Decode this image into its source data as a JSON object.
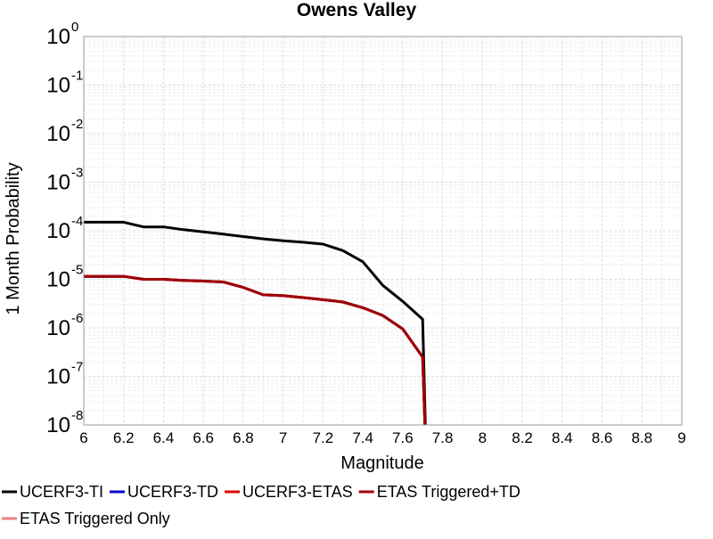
{
  "chart_data": {
    "type": "line",
    "title": "Owens Valley",
    "xlabel": "Magnitude",
    "ylabel": "1 Month Probability",
    "xlim": [
      6,
      9
    ],
    "ylim": [
      1e-08,
      1
    ],
    "y_scale": "log",
    "grid": true,
    "legend_position": "bottom",
    "x_ticks": [
      "6",
      "6.2",
      "6.4",
      "6.6",
      "6.8",
      "7",
      "7.2",
      "7.4",
      "7.6",
      "7.8",
      "8",
      "8.2",
      "8.4",
      "8.6",
      "8.8",
      "9"
    ],
    "y_ticks": [
      {
        "base": "10",
        "exp": "0"
      },
      {
        "base": "10",
        "exp": "-1"
      },
      {
        "base": "10",
        "exp": "-2"
      },
      {
        "base": "10",
        "exp": "-3"
      },
      {
        "base": "10",
        "exp": "-4"
      },
      {
        "base": "10",
        "exp": "-5"
      },
      {
        "base": "10",
        "exp": "-6"
      },
      {
        "base": "10",
        "exp": "-7"
      },
      {
        "base": "10",
        "exp": "-8"
      }
    ],
    "series": [
      {
        "name": "UCERF3-TI",
        "color": "#000000",
        "x": [
          6.0,
          6.1,
          6.2,
          6.3,
          6.4,
          6.5,
          6.6,
          6.7,
          6.8,
          6.9,
          7.0,
          7.1,
          7.2,
          7.3,
          7.4,
          7.5,
          7.6,
          7.7,
          7.72
        ],
        "y": [
          0.00015,
          0.00015,
          0.00015,
          0.00012,
          0.00012,
          0.000105,
          9.5e-05,
          8.5e-05,
          7.6e-05,
          6.8e-05,
          6.2e-05,
          5.8e-05,
          5.3e-05,
          3.9e-05,
          2.3e-05,
          7.5e-06,
          3.5e-06,
          1.5e-06,
          1e-09
        ]
      },
      {
        "name": "UCERF3-TD",
        "color": "#0000cc",
        "x": [
          6.0,
          6.1,
          6.2,
          6.3,
          6.4,
          6.5,
          6.6,
          6.7,
          6.8,
          6.9,
          7.0,
          7.1,
          7.2,
          7.3,
          7.4,
          7.5,
          7.6,
          7.7,
          7.72
        ],
        "y": [
          1.15e-05,
          1.15e-05,
          1.15e-05,
          1e-05,
          1e-05,
          9.5e-06,
          9.2e-06,
          8.8e-06,
          6.8e-06,
          4.8e-06,
          4.6e-06,
          4.2e-06,
          3.8e-06,
          3.4e-06,
          2.6e-06,
          1.8e-06,
          9.5e-07,
          2.5e-07,
          1e-09
        ]
      },
      {
        "name": "UCERF3-ETAS",
        "color": "#e00000",
        "x": [
          6.0,
          6.1,
          6.2,
          6.3,
          6.4,
          6.5,
          6.6,
          6.7,
          6.8,
          6.9,
          7.0,
          7.1,
          7.2,
          7.3,
          7.4,
          7.5,
          7.6,
          7.7,
          7.72
        ],
        "y": [
          1.15e-05,
          1.15e-05,
          1.15e-05,
          1e-05,
          1e-05,
          9.5e-06,
          9.2e-06,
          8.8e-06,
          6.8e-06,
          4.8e-06,
          4.6e-06,
          4.2e-06,
          3.8e-06,
          3.4e-06,
          2.6e-06,
          1.8e-06,
          9.5e-07,
          2.5e-07,
          1e-09
        ]
      },
      {
        "name": "ETAS Triggered+TD",
        "color": "#a00000",
        "x": [
          6.0,
          6.1,
          6.2,
          6.3,
          6.4,
          6.5,
          6.6,
          6.7,
          6.8,
          6.9,
          7.0,
          7.1,
          7.2,
          7.3,
          7.4,
          7.5,
          7.6,
          7.7,
          7.72
        ],
        "y": [
          1.15e-05,
          1.15e-05,
          1.15e-05,
          1e-05,
          1e-05,
          9.5e-06,
          9.2e-06,
          8.8e-06,
          6.8e-06,
          4.8e-06,
          4.6e-06,
          4.2e-06,
          3.8e-06,
          3.4e-06,
          2.6e-06,
          1.8e-06,
          9.5e-07,
          2.5e-07,
          1e-09
        ]
      },
      {
        "name": "ETAS Triggered Only",
        "color": "#f08080",
        "x": [],
        "y": []
      }
    ]
  }
}
